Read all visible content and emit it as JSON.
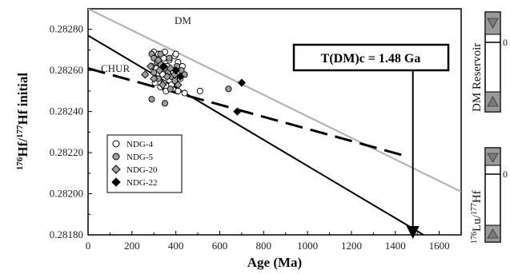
{
  "chart_data": {
    "type": "scatter",
    "xlabel": "Age (Ma)",
    "ylabel_parts": {
      "sup1": "176",
      "mid1": "Hf/",
      "sup2": "177",
      "mid2": "Hf initial"
    },
    "xlim": [
      0,
      1700
    ],
    "ylim": [
      0.2818,
      0.2829
    ],
    "x_ticks": [
      "0",
      "200",
      "400",
      "600",
      "800",
      "1000",
      "1200",
      "1400",
      "1600"
    ],
    "x_tick_values": [
      0,
      200,
      400,
      600,
      800,
      1000,
      1200,
      1400,
      1600
    ],
    "y_ticks": [
      "0.28180",
      "0.28200",
      "0.28220",
      "0.28240",
      "0.28260",
      "0.28280"
    ],
    "y_tick_values": [
      0.2818,
      0.282,
      0.2822,
      0.2824,
      0.2826,
      0.2828
    ],
    "reference_lines": [
      {
        "label": "DM",
        "style": "gray",
        "points": [
          [
            0,
            0.2829
          ],
          [
            1700,
            0.28201
          ]
        ]
      },
      {
        "label": "CHUR",
        "style": "solid",
        "points": [
          [
            0,
            0.28277
          ],
          [
            1560,
            0.28178
          ]
        ]
      },
      {
        "label": "",
        "style": "dashed",
        "points": [
          [
            0,
            0.28261
          ],
          [
            1460,
            0.28218
          ]
        ]
      }
    ],
    "callout": {
      "text": "T(DM)c = 1.48 Ga",
      "arrow_x": 1480
    },
    "series": [
      {
        "name": "NDG-4",
        "marker": "circle-open",
        "points": [
          [
            300,
            0.28269
          ],
          [
            320,
            0.28268
          ],
          [
            345,
            0.28266
          ],
          [
            370,
            0.28265
          ],
          [
            395,
            0.28267
          ],
          [
            410,
            0.28264
          ],
          [
            430,
            0.28262
          ],
          [
            310,
            0.28261
          ],
          [
            340,
            0.28258
          ],
          [
            360,
            0.28262
          ],
          [
            385,
            0.28259
          ],
          [
            420,
            0.28256
          ],
          [
            305,
            0.28254
          ],
          [
            330,
            0.28252
          ],
          [
            355,
            0.2825
          ],
          [
            380,
            0.28253
          ],
          [
            410,
            0.2825
          ],
          [
            440,
            0.28249
          ],
          [
            510,
            0.2825
          ],
          [
            290,
            0.28262
          ],
          [
            350,
            0.28269
          ],
          [
            400,
            0.28268
          ]
        ]
      },
      {
        "name": "NDG-5",
        "marker": "circle-gray",
        "points": [
          [
            290,
            0.28268
          ],
          [
            300,
            0.28266
          ],
          [
            315,
            0.28264
          ],
          [
            330,
            0.28263
          ],
          [
            350,
            0.28261
          ],
          [
            365,
            0.28259
          ],
          [
            380,
            0.28257
          ],
          [
            395,
            0.28255
          ],
          [
            300,
            0.28259
          ],
          [
            320,
            0.28256
          ],
          [
            345,
            0.28254
          ],
          [
            375,
            0.28251
          ],
          [
            405,
            0.28262
          ],
          [
            425,
            0.2826
          ],
          [
            440,
            0.28258
          ],
          [
            290,
            0.28246
          ],
          [
            350,
            0.28244
          ],
          [
            640,
            0.28251
          ],
          [
            330,
            0.28268
          ],
          [
            370,
            0.28266
          ]
        ]
      },
      {
        "name": "NDG-20",
        "marker": "diamond-gray",
        "points": [
          [
            260,
            0.28258
          ],
          [
            285,
            0.28262
          ],
          [
            300,
            0.28256
          ],
          [
            325,
            0.2826
          ],
          [
            340,
            0.28253
          ],
          [
            360,
            0.28257
          ],
          [
            375,
            0.28261
          ],
          [
            395,
            0.28258
          ],
          [
            410,
            0.28253
          ],
          [
            320,
            0.28265
          ]
        ]
      },
      {
        "name": "NDG-22",
        "marker": "diamond-black",
        "points": [
          [
            345,
            0.28262
          ],
          [
            400,
            0.2826
          ],
          [
            420,
            0.28257
          ],
          [
            680,
            0.2824
          ],
          [
            700,
            0.28254
          ]
        ]
      }
    ],
    "side_panels": [
      {
        "label": "DM Reservoir",
        "zero_label": "0"
      },
      {
        "label_parts": {
          "sup1": "176",
          "mid1": "Lu/",
          "sup2": "177",
          "mid2": "Hf"
        },
        "zero_label": "0"
      }
    ]
  }
}
